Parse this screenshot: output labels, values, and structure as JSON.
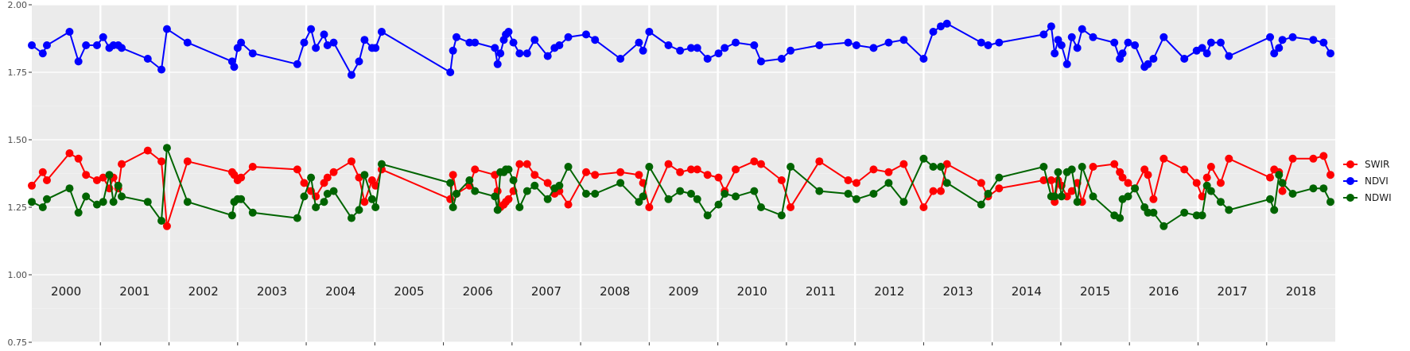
{
  "chart_data": {
    "type": "line",
    "title": "",
    "xlabel": "",
    "ylabel": "",
    "ylim": [
      0.75,
      2.0
    ],
    "xlim": [
      2000.0,
      2019.0
    ],
    "grid": true,
    "legend_position": "right",
    "y_ticks": [
      "0.75",
      "1.00",
      "1.25",
      "1.50",
      "1.75",
      "2.00"
    ],
    "y_tick_values": [
      0.75,
      1.0,
      1.25,
      1.5,
      1.75,
      2.0
    ],
    "year_panels": [
      "2000",
      "2001",
      "2002",
      "2003",
      "2004",
      "2005",
      "2006",
      "2007",
      "2008",
      "2009",
      "2010",
      "2011",
      "2012",
      "2013",
      "2014",
      "2015",
      "2016",
      "2017",
      "2018"
    ],
    "year_boundaries": [
      2001,
      2002,
      2003,
      2004,
      2005,
      2006,
      2007,
      2008,
      2009,
      2010,
      2011,
      2012,
      2013,
      2014,
      2015,
      2016,
      2017,
      2018
    ],
    "series": [
      {
        "name": "SWIR",
        "color": "#ff0000",
        "x": [
          2000.0,
          2000.16,
          2000.22,
          2000.55,
          2000.68,
          2000.79,
          2000.95,
          2001.04,
          2001.13,
          2001.19,
          2001.26,
          2001.31,
          2001.69,
          2001.89,
          2001.97,
          2002.27,
          2002.92,
          2002.95,
          2003.0,
          2003.05,
          2003.22,
          2003.87,
          2003.97,
          2004.07,
          2004.14,
          2004.26,
          2004.31,
          2004.4,
          2004.66,
          2004.77,
          2004.85,
          2004.96,
          2005.01,
          2005.1,
          2006.1,
          2006.14,
          2006.19,
          2006.38,
          2006.46,
          2006.75,
          2006.79,
          2006.83,
          2006.88,
          2006.91,
          2006.95,
          2007.02,
          2007.11,
          2007.22,
          2007.33,
          2007.52,
          2007.62,
          2007.69,
          2007.82,
          2008.08,
          2008.21,
          2008.58,
          2008.85,
          2008.91,
          2009.0,
          2009.28,
          2009.45,
          2009.61,
          2009.7,
          2009.85,
          2010.01,
          2010.1,
          2010.26,
          2010.53,
          2010.63,
          2010.93,
          2011.06,
          2011.48,
          2011.9,
          2012.02,
          2012.27,
          2012.49,
          2012.71,
          2013.0,
          2013.14,
          2013.25,
          2013.34,
          2013.84,
          2013.94,
          2014.1,
          2014.75,
          2014.86,
          2014.91,
          2014.96,
          2015.01,
          2015.09,
          2015.16,
          2015.24,
          2015.31,
          2015.47,
          2015.78,
          2015.86,
          2015.9,
          2015.98,
          2016.08,
          2016.22,
          2016.27,
          2016.35,
          2016.5,
          2016.8,
          2016.98,
          2017.06,
          2017.13,
          2017.19,
          2017.33,
          2017.45,
          2018.05,
          2018.11,
          2018.18,
          2018.23,
          2018.38,
          2018.68,
          2018.83,
          2018.93
        ],
        "y": [
          1.33,
          1.38,
          1.35,
          1.45,
          1.43,
          1.37,
          1.35,
          1.36,
          1.32,
          1.36,
          1.32,
          1.41,
          1.46,
          1.42,
          1.18,
          1.42,
          1.38,
          1.37,
          1.35,
          1.36,
          1.4,
          1.39,
          1.34,
          1.31,
          1.29,
          1.34,
          1.36,
          1.38,
          1.42,
          1.36,
          1.27,
          1.35,
          1.33,
          1.39,
          1.28,
          1.37,
          1.3,
          1.33,
          1.39,
          1.37,
          1.31,
          1.25,
          1.26,
          1.27,
          1.28,
          1.31,
          1.41,
          1.41,
          1.37,
          1.34,
          1.3,
          1.31,
          1.26,
          1.38,
          1.37,
          1.38,
          1.37,
          1.34,
          1.25,
          1.41,
          1.38,
          1.39,
          1.39,
          1.37,
          1.36,
          1.31,
          1.39,
          1.42,
          1.41,
          1.35,
          1.25,
          1.42,
          1.35,
          1.34,
          1.39,
          1.38,
          1.41,
          1.25,
          1.31,
          1.31,
          1.41,
          1.34,
          1.29,
          1.32,
          1.35,
          1.35,
          1.27,
          1.35,
          1.33,
          1.29,
          1.31,
          1.34,
          1.27,
          1.4,
          1.41,
          1.38,
          1.36,
          1.34,
          1.32,
          1.39,
          1.37,
          1.28,
          1.43,
          1.39,
          1.34,
          1.29,
          1.36,
          1.4,
          1.34,
          1.43,
          1.36,
          1.39,
          1.38,
          1.31,
          1.43,
          1.43,
          1.44,
          1.37
        ]
      },
      {
        "name": "NDVI",
        "color": "#0000ff",
        "x": [
          2000.0,
          2000.16,
          2000.22,
          2000.55,
          2000.68,
          2000.79,
          2000.95,
          2001.04,
          2001.13,
          2001.19,
          2001.26,
          2001.31,
          2001.69,
          2001.89,
          2001.97,
          2002.27,
          2002.92,
          2002.95,
          2003.0,
          2003.05,
          2003.22,
          2003.87,
          2003.97,
          2004.07,
          2004.14,
          2004.26,
          2004.31,
          2004.4,
          2004.66,
          2004.77,
          2004.85,
          2004.96,
          2005.01,
          2005.1,
          2006.1,
          2006.14,
          2006.19,
          2006.38,
          2006.46,
          2006.75,
          2006.79,
          2006.83,
          2006.88,
          2006.91,
          2006.95,
          2007.02,
          2007.11,
          2007.22,
          2007.33,
          2007.52,
          2007.62,
          2007.69,
          2007.82,
          2008.08,
          2008.21,
          2008.58,
          2008.85,
          2008.91,
          2009.0,
          2009.28,
          2009.45,
          2009.61,
          2009.7,
          2009.85,
          2010.01,
          2010.1,
          2010.26,
          2010.53,
          2010.63,
          2010.93,
          2011.06,
          2011.48,
          2011.9,
          2012.02,
          2012.27,
          2012.49,
          2012.71,
          2013.0,
          2013.14,
          2013.25,
          2013.34,
          2013.84,
          2013.94,
          2014.1,
          2014.75,
          2014.86,
          2014.91,
          2014.96,
          2015.01,
          2015.09,
          2015.16,
          2015.24,
          2015.31,
          2015.47,
          2015.78,
          2015.86,
          2015.9,
          2015.98,
          2016.08,
          2016.22,
          2016.27,
          2016.35,
          2016.5,
          2016.8,
          2016.98,
          2017.06,
          2017.13,
          2017.19,
          2017.33,
          2017.45,
          2018.05,
          2018.11,
          2018.18,
          2018.23,
          2018.38,
          2018.68,
          2018.83,
          2018.93
        ],
        "y": [
          1.85,
          1.82,
          1.85,
          1.9,
          1.79,
          1.85,
          1.85,
          1.88,
          1.84,
          1.85,
          1.85,
          1.84,
          1.8,
          1.76,
          1.91,
          1.86,
          1.79,
          1.77,
          1.84,
          1.86,
          1.82,
          1.78,
          1.86,
          1.91,
          1.84,
          1.89,
          1.85,
          1.86,
          1.74,
          1.79,
          1.87,
          1.84,
          1.84,
          1.9,
          1.75,
          1.83,
          1.88,
          1.86,
          1.86,
          1.84,
          1.78,
          1.82,
          1.87,
          1.89,
          1.9,
          1.86,
          1.82,
          1.82,
          1.87,
          1.81,
          1.84,
          1.85,
          1.88,
          1.89,
          1.87,
          1.8,
          1.86,
          1.83,
          1.9,
          1.85,
          1.83,
          1.84,
          1.84,
          1.8,
          1.82,
          1.84,
          1.86,
          1.85,
          1.79,
          1.8,
          1.83,
          1.85,
          1.86,
          1.85,
          1.84,
          1.86,
          1.87,
          1.8,
          1.9,
          1.92,
          1.93,
          1.86,
          1.85,
          1.86,
          1.89,
          1.92,
          1.82,
          1.87,
          1.85,
          1.78,
          1.88,
          1.84,
          1.91,
          1.88,
          1.86,
          1.8,
          1.82,
          1.86,
          1.85,
          1.77,
          1.78,
          1.8,
          1.88,
          1.8,
          1.83,
          1.84,
          1.82,
          1.86,
          1.86,
          1.81,
          1.88,
          1.82,
          1.84,
          1.87,
          1.88,
          1.87,
          1.86,
          1.82
        ]
      },
      {
        "name": "NDWI",
        "color": "#006400",
        "x": [
          2000.0,
          2000.16,
          2000.22,
          2000.55,
          2000.68,
          2000.79,
          2000.95,
          2001.04,
          2001.13,
          2001.19,
          2001.26,
          2001.31,
          2001.69,
          2001.89,
          2001.97,
          2002.27,
          2002.92,
          2002.95,
          2003.0,
          2003.05,
          2003.22,
          2003.87,
          2003.97,
          2004.07,
          2004.14,
          2004.26,
          2004.31,
          2004.4,
          2004.66,
          2004.77,
          2004.85,
          2004.96,
          2005.01,
          2005.1,
          2006.1,
          2006.14,
          2006.19,
          2006.38,
          2006.46,
          2006.75,
          2006.79,
          2006.83,
          2006.88,
          2006.91,
          2006.95,
          2007.02,
          2007.11,
          2007.22,
          2007.33,
          2007.52,
          2007.62,
          2007.69,
          2007.82,
          2008.08,
          2008.21,
          2008.58,
          2008.85,
          2008.91,
          2009.0,
          2009.28,
          2009.45,
          2009.61,
          2009.7,
          2009.85,
          2010.01,
          2010.1,
          2010.26,
          2010.53,
          2010.63,
          2010.93,
          2011.06,
          2011.48,
          2011.9,
          2012.02,
          2012.27,
          2012.49,
          2012.71,
          2013.0,
          2013.14,
          2013.25,
          2013.34,
          2013.84,
          2013.94,
          2014.1,
          2014.75,
          2014.86,
          2014.91,
          2014.96,
          2015.01,
          2015.09,
          2015.16,
          2015.24,
          2015.31,
          2015.47,
          2015.78,
          2015.86,
          2015.9,
          2015.98,
          2016.08,
          2016.22,
          2016.27,
          2016.35,
          2016.5,
          2016.8,
          2016.98,
          2017.06,
          2017.13,
          2017.19,
          2017.33,
          2017.45,
          2018.05,
          2018.11,
          2018.18,
          2018.23,
          2018.38,
          2018.68,
          2018.83,
          2018.93
        ],
        "y": [
          1.27,
          1.25,
          1.28,
          1.32,
          1.23,
          1.29,
          1.26,
          1.27,
          1.37,
          1.27,
          1.33,
          1.29,
          1.27,
          1.2,
          1.47,
          1.27,
          1.22,
          1.27,
          1.28,
          1.28,
          1.23,
          1.21,
          1.29,
          1.36,
          1.25,
          1.27,
          1.3,
          1.31,
          1.21,
          1.24,
          1.37,
          1.28,
          1.25,
          1.41,
          1.34,
          1.25,
          1.3,
          1.35,
          1.31,
          1.29,
          1.24,
          1.38,
          1.38,
          1.39,
          1.39,
          1.35,
          1.25,
          1.31,
          1.33,
          1.28,
          1.32,
          1.33,
          1.4,
          1.3,
          1.3,
          1.34,
          1.27,
          1.29,
          1.4,
          1.28,
          1.31,
          1.3,
          1.28,
          1.22,
          1.26,
          1.3,
          1.29,
          1.31,
          1.25,
          1.22,
          1.4,
          1.31,
          1.3,
          1.28,
          1.3,
          1.34,
          1.27,
          1.43,
          1.4,
          1.4,
          1.34,
          1.26,
          1.3,
          1.36,
          1.4,
          1.29,
          1.29,
          1.38,
          1.29,
          1.38,
          1.39,
          1.27,
          1.4,
          1.29,
          1.22,
          1.21,
          1.28,
          1.29,
          1.32,
          1.25,
          1.23,
          1.23,
          1.18,
          1.23,
          1.22,
          1.22,
          1.33,
          1.31,
          1.27,
          1.24,
          1.28,
          1.24,
          1.37,
          1.34,
          1.3,
          1.32,
          1.32,
          1.27
        ]
      }
    ]
  }
}
